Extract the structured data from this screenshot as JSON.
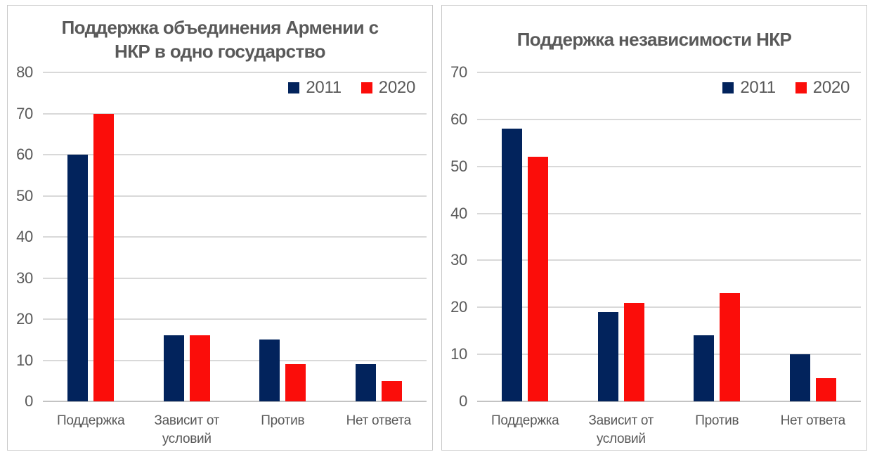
{
  "colors": {
    "series_2011": "#02235c",
    "series_2020": "#fb0d0a",
    "text": "#595959",
    "gridline": "#d9d9d9",
    "axis_baseline": "#c3c3c3",
    "panel_border": "#c9c9c9",
    "background": "#ffffff"
  },
  "chart_data": [
    {
      "type": "bar",
      "title": "Поддержка объединения Армении с НКР в одно государство",
      "title_lines": [
        "Поддержка объединения Армении с",
        "НКР в одно государство"
      ],
      "categories": [
        "Поддержка",
        "Зависит от условий",
        "Против",
        "Нет ответа"
      ],
      "category_lines": [
        [
          "Поддержка"
        ],
        [
          "Зависит от",
          "условий"
        ],
        [
          "Против"
        ],
        [
          "Нет ответа"
        ]
      ],
      "series": [
        {
          "name": "2011",
          "color": "#02235c",
          "values": [
            60,
            16,
            15,
            9
          ]
        },
        {
          "name": "2020",
          "color": "#fb0d0a",
          "values": [
            70,
            16,
            9,
            5
          ]
        }
      ],
      "xlabel": "",
      "ylabel": "",
      "ylim": [
        0,
        80
      ],
      "ystep": 10,
      "grid": true,
      "legend_position": "top-right"
    },
    {
      "type": "bar",
      "title": "Поддержка независимости НКР",
      "title_lines": [
        "Поддержка независимости НКР"
      ],
      "categories": [
        "Поддержка",
        "Зависит от условий",
        "Против",
        "Нет ответа"
      ],
      "category_lines": [
        [
          "Поддержка"
        ],
        [
          "Зависит от",
          "условий"
        ],
        [
          "Против"
        ],
        [
          "Нет ответа"
        ]
      ],
      "series": [
        {
          "name": "2011",
          "color": "#02235c",
          "values": [
            58,
            19,
            14,
            10
          ]
        },
        {
          "name": "2020",
          "color": "#fb0d0a",
          "values": [
            52,
            21,
            23,
            5
          ]
        }
      ],
      "xlabel": "",
      "ylabel": "",
      "ylim": [
        0,
        70
      ],
      "ystep": 10,
      "grid": true,
      "legend_position": "top-right"
    }
  ]
}
